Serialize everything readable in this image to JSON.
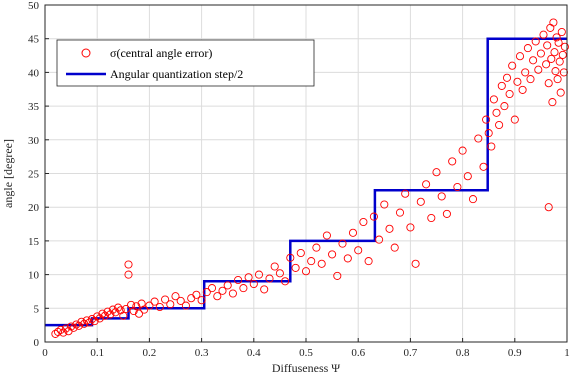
{
  "chart_data": {
    "type": "scatter",
    "xlabel": "Diffuseness Ψ",
    "ylabel": "angle [degree]",
    "xlim": [
      0,
      1
    ],
    "ylim": [
      0,
      50
    ],
    "xticks": [
      "0",
      "0.1",
      "0.2",
      "0.3",
      "0.4",
      "0.5",
      "0.6",
      "0.7",
      "0.8",
      "0.9",
      "1"
    ],
    "yticks": [
      "0",
      "5",
      "10",
      "15",
      "20",
      "25",
      "30",
      "35",
      "40",
      "45",
      "50"
    ],
    "grid": true,
    "legend_position": "top-left",
    "colors": {
      "scatter": "#ff0000",
      "step": "#0000cc"
    },
    "legend": [
      {
        "name": "σ(central angle error)",
        "marker": "circle"
      },
      {
        "name": "Angular quantization step/2",
        "marker": "line"
      }
    ],
    "series": [
      {
        "name": "σ(central angle error)",
        "kind": "scatter",
        "points": [
          [
            0.02,
            1.2
          ],
          [
            0.025,
            1.5
          ],
          [
            0.03,
            1.8
          ],
          [
            0.035,
            1.4
          ],
          [
            0.04,
            2.0
          ],
          [
            0.045,
            1.6
          ],
          [
            0.05,
            2.3
          ],
          [
            0.055,
            2.1
          ],
          [
            0.06,
            2.6
          ],
          [
            0.065,
            2.4
          ],
          [
            0.07,
            3.0
          ],
          [
            0.075,
            2.7
          ],
          [
            0.08,
            3.2
          ],
          [
            0.085,
            2.9
          ],
          [
            0.09,
            3.4
          ],
          [
            0.095,
            3.1
          ],
          [
            0.1,
            3.8
          ],
          [
            0.105,
            3.5
          ],
          [
            0.11,
            4.2
          ],
          [
            0.115,
            3.9
          ],
          [
            0.12,
            4.5
          ],
          [
            0.125,
            4.1
          ],
          [
            0.13,
            4.8
          ],
          [
            0.135,
            4.4
          ],
          [
            0.14,
            5.1
          ],
          [
            0.145,
            4.7
          ],
          [
            0.15,
            3.9
          ],
          [
            0.155,
            4.9
          ],
          [
            0.16,
            11.5
          ],
          [
            0.16,
            10.0
          ],
          [
            0.165,
            5.5
          ],
          [
            0.17,
            4.6
          ],
          [
            0.175,
            5.3
          ],
          [
            0.18,
            4.2
          ],
          [
            0.185,
            5.7
          ],
          [
            0.19,
            4.8
          ],
          [
            0.2,
            5.4
          ],
          [
            0.21,
            6.0
          ],
          [
            0.22,
            5.2
          ],
          [
            0.23,
            6.3
          ],
          [
            0.24,
            5.6
          ],
          [
            0.25,
            6.8
          ],
          [
            0.26,
            6.1
          ],
          [
            0.27,
            5.4
          ],
          [
            0.28,
            6.5
          ],
          [
            0.29,
            7.0
          ],
          [
            0.3,
            6.2
          ],
          [
            0.31,
            7.4
          ],
          [
            0.32,
            8.0
          ],
          [
            0.33,
            6.8
          ],
          [
            0.34,
            7.6
          ],
          [
            0.35,
            8.4
          ],
          [
            0.36,
            7.2
          ],
          [
            0.37,
            9.2
          ],
          [
            0.38,
            8.0
          ],
          [
            0.39,
            9.6
          ],
          [
            0.4,
            8.6
          ],
          [
            0.41,
            10.0
          ],
          [
            0.42,
            7.8
          ],
          [
            0.43,
            9.4
          ],
          [
            0.44,
            11.2
          ],
          [
            0.45,
            10.2
          ],
          [
            0.46,
            9.0
          ],
          [
            0.47,
            12.5
          ],
          [
            0.48,
            11.0
          ],
          [
            0.49,
            13.2
          ],
          [
            0.5,
            10.5
          ],
          [
            0.51,
            12.0
          ],
          [
            0.52,
            14.0
          ],
          [
            0.53,
            11.6
          ],
          [
            0.54,
            15.8
          ],
          [
            0.55,
            13.0
          ],
          [
            0.56,
            9.8
          ],
          [
            0.57,
            14.6
          ],
          [
            0.58,
            12.4
          ],
          [
            0.59,
            16.2
          ],
          [
            0.6,
            13.6
          ],
          [
            0.61,
            17.8
          ],
          [
            0.62,
            12.0
          ],
          [
            0.63,
            18.6
          ],
          [
            0.64,
            15.2
          ],
          [
            0.65,
            20.4
          ],
          [
            0.66,
            16.8
          ],
          [
            0.67,
            14.0
          ],
          [
            0.68,
            19.2
          ],
          [
            0.69,
            22.0
          ],
          [
            0.7,
            17.0
          ],
          [
            0.71,
            11.6
          ],
          [
            0.72,
            20.8
          ],
          [
            0.73,
            23.4
          ],
          [
            0.74,
            18.4
          ],
          [
            0.75,
            25.2
          ],
          [
            0.76,
            21.6
          ],
          [
            0.77,
            19.0
          ],
          [
            0.78,
            26.8
          ],
          [
            0.79,
            23.0
          ],
          [
            0.8,
            28.4
          ],
          [
            0.81,
            24.6
          ],
          [
            0.82,
            21.2
          ],
          [
            0.83,
            30.2
          ],
          [
            0.84,
            26.0
          ],
          [
            0.845,
            33.0
          ],
          [
            0.85,
            31.0
          ],
          [
            0.855,
            29.0
          ],
          [
            0.86,
            36.0
          ],
          [
            0.865,
            34.0
          ],
          [
            0.87,
            32.2
          ],
          [
            0.875,
            38.0
          ],
          [
            0.88,
            35.0
          ],
          [
            0.885,
            39.2
          ],
          [
            0.89,
            36.8
          ],
          [
            0.895,
            41.0
          ],
          [
            0.9,
            33.0
          ],
          [
            0.905,
            38.6
          ],
          [
            0.91,
            42.4
          ],
          [
            0.915,
            37.4
          ],
          [
            0.92,
            40.0
          ],
          [
            0.925,
            43.6
          ],
          [
            0.93,
            39.0
          ],
          [
            0.935,
            41.8
          ],
          [
            0.94,
            44.6
          ],
          [
            0.945,
            40.4
          ],
          [
            0.95,
            42.8
          ],
          [
            0.955,
            45.6
          ],
          [
            0.96,
            41.2
          ],
          [
            0.962,
            44.0
          ],
          [
            0.965,
            38.4
          ],
          [
            0.968,
            46.6
          ],
          [
            0.97,
            42.0
          ],
          [
            0.972,
            35.6
          ],
          [
            0.974,
            47.4
          ],
          [
            0.976,
            43.0
          ],
          [
            0.978,
            40.2
          ],
          [
            0.98,
            45.2
          ],
          [
            0.982,
            39.0
          ],
          [
            0.984,
            44.4
          ],
          [
            0.986,
            41.6
          ],
          [
            0.988,
            37.0
          ],
          [
            0.99,
            46.0
          ],
          [
            0.992,
            42.6
          ],
          [
            0.994,
            40.0
          ],
          [
            0.996,
            43.8
          ],
          [
            0.965,
            20.0
          ]
        ]
      },
      {
        "name": "Angular quantization step/2",
        "kind": "step",
        "points": [
          [
            0.0,
            2.5
          ],
          [
            0.09,
            2.5
          ],
          [
            0.09,
            3.5
          ],
          [
            0.16,
            3.5
          ],
          [
            0.16,
            5.0
          ],
          [
            0.305,
            5.0
          ],
          [
            0.305,
            9.0
          ],
          [
            0.47,
            9.0
          ],
          [
            0.47,
            15.0
          ],
          [
            0.632,
            15.0
          ],
          [
            0.632,
            22.5
          ],
          [
            0.848,
            22.5
          ],
          [
            0.848,
            45.0
          ],
          [
            1.0,
            45.0
          ]
        ]
      }
    ]
  }
}
